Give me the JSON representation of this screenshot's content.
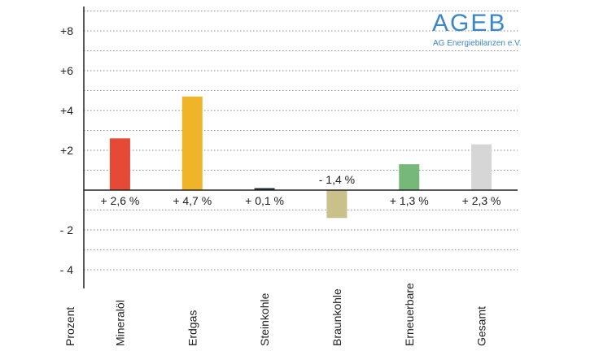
{
  "logo": {
    "text": "AGEB",
    "subtitle": "AG Energiebilanzen e.V."
  },
  "chart_data": {
    "type": "bar",
    "title": "",
    "ylabel": "Prozent",
    "xlabel": "",
    "ylim": [
      -5,
      9.2
    ],
    "grid": true,
    "ytick_values": [
      8,
      6,
      4,
      2,
      -2,
      -4
    ],
    "ytick_labels": [
      "+8",
      "+6",
      "+4",
      "+2",
      "- 2",
      "- 4"
    ],
    "categories": [
      "Mineralöl",
      "Erdgas",
      "Steinkohle",
      "Braunkohle",
      "Erneuerbare",
      "Gesamt"
    ],
    "values": [
      2.6,
      4.7,
      0.1,
      -1.4,
      1.3,
      2.3
    ],
    "value_labels": [
      "+ 2,6 %",
      "+ 4,7 %",
      "+ 0,1 %",
      "- 1,4 %",
      "+ 1,3 %",
      "+ 2,3 %"
    ],
    "colors": [
      "#e64a36",
      "#f0b429",
      "#1f2b3a",
      "#c9c08a",
      "#76b87a",
      "#d6d6d6"
    ]
  }
}
